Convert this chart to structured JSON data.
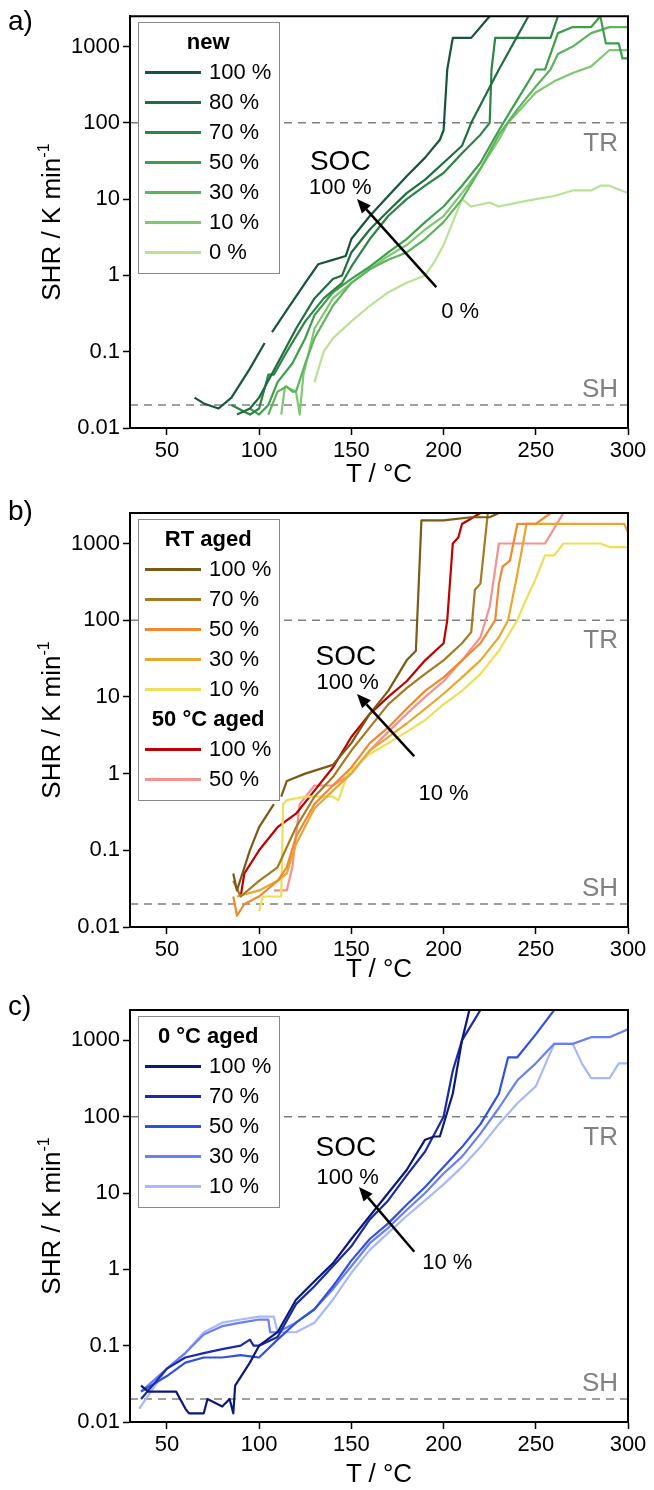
{
  "chart_data": [
    {
      "type": "line",
      "title": "a)",
      "xlabel": "T / °C",
      "ylabel": "SHR / K min$^{-1}$",
      "legend_title": "new",
      "legend": "top left",
      "log": "y",
      "xlim": [
        30,
        300
      ],
      "ylim": [
        0.01,
        2500
      ],
      "xticks": [
        50,
        100,
        150,
        200,
        250,
        300
      ],
      "yticks": [
        0.01,
        0.1,
        1,
        10,
        100,
        1000
      ],
      "ref_lines": [
        {
          "axis": "y",
          "value": 100,
          "label": "TR",
          "color": "#808080",
          "line_style": "dashed"
        },
        {
          "axis": "y",
          "value": 0.02,
          "label": "SH",
          "color": "#808080",
          "line_style": "dashed"
        }
      ],
      "annotations": [
        "SOC",
        "100 %",
        "0 %"
      ],
      "series": [
        {
          "name": "100 %",
          "color": "#17553a",
          "x": [
            65,
            70,
            78,
            85,
            95,
            103,
            104,
            107,
            115,
            125,
            132,
            140,
            147,
            150,
            160,
            170,
            180,
            190,
            198,
            200,
            202,
            205,
            215,
            225
          ],
          "values": [
            0.025,
            0.021,
            0.018,
            0.025,
            0.06,
            0.13,
            null,
            0.18,
            0.35,
            0.8,
            1.4,
            1.6,
            1.8,
            3,
            6,
            11,
            20,
            35,
            60,
            80,
            500,
            1300,
            1300,
            2500
          ]
        },
        {
          "name": "80 %",
          "color": "#1f6e3f",
          "x": [
            88,
            95,
            100,
            110,
            120,
            130,
            140,
            145,
            150,
            160,
            170,
            180,
            190,
            200,
            210,
            215,
            230,
            246
          ],
          "values": [
            0.015,
            0.018,
            0.025,
            0.07,
            0.2,
            0.5,
            0.9,
            1,
            2,
            4,
            7,
            12,
            18,
            30,
            50,
            100,
            500,
            2500
          ]
        },
        {
          "name": "70 %",
          "color": "#2c8544",
          "x": [
            85,
            95,
            100,
            105,
            108,
            115,
            125,
            135,
            145,
            150,
            160,
            170,
            180,
            190,
            200,
            210,
            220,
            225,
            226,
            228,
            258,
            262
          ],
          "values": [
            0.02,
            0.015,
            0.018,
            0.05,
            0.05,
            0.1,
            0.25,
            0.5,
            0.8,
            1.3,
            3,
            6,
            10,
            15,
            22,
            40,
            70,
            100,
            500,
            1300,
            1300,
            2500
          ]
        },
        {
          "name": "50 %",
          "color": "#3e9e4c",
          "x": [
            95,
            100,
            105,
            110,
            118,
            125,
            130,
            140,
            150,
            160,
            170,
            180,
            190,
            200,
            210,
            220,
            230,
            240,
            250,
            255,
            262,
            270,
            280,
            285,
            288,
            295,
            297,
            300
          ],
          "values": [
            0.018,
            0.015,
            0.02,
            0.04,
            0.07,
            0.15,
            0.3,
            0.6,
            0.9,
            1.3,
            2,
            3,
            5,
            8,
            15,
            30,
            80,
            200,
            500,
            500,
            1500,
            1800,
            1800,
            2500,
            1100,
            1100,
            700,
            700
          ]
        },
        {
          "name": "30 %",
          "color": "#5cb55a",
          "x": [
            105,
            110,
            115,
            118,
            120,
            125,
            130,
            140,
            150,
            160,
            170,
            180,
            190,
            200,
            210,
            220,
            230,
            240,
            250,
            258,
            262,
            270,
            280,
            290,
            300
          ],
          "values": [
            0.015,
            0.03,
            0.035,
            0.03,
            0.03,
            0.07,
            0.15,
            0.4,
            0.8,
            1.2,
            1.6,
            2,
            3,
            5,
            10,
            25,
            70,
            150,
            300,
            500,
            800,
            1000,
            1500,
            1800,
            1800
          ]
        },
        {
          "name": "10 %",
          "color": "#80c870",
          "x": [
            112,
            114,
            120,
            122,
            124,
            130,
            140,
            150,
            160,
            170,
            180,
            190,
            200,
            210,
            220,
            230,
            235,
            250,
            260,
            270,
            280,
            290,
            300
          ],
          "values": [
            0.015,
            0.035,
            0.03,
            0.015,
            0.05,
            0.2,
            0.5,
            0.8,
            1.2,
            1.8,
            2.5,
            4,
            6,
            12,
            25,
            60,
            100,
            250,
            350,
            450,
            550,
            900,
            900
          ]
        },
        {
          "name": "0 %",
          "color": "#b8e296",
          "x": [
            130,
            135,
            140,
            150,
            160,
            170,
            180,
            190,
            195,
            200,
            205,
            210,
            215,
            225,
            230,
            240,
            250,
            260,
            270,
            280,
            285,
            290,
            300
          ],
          "values": [
            0.04,
            0.1,
            0.15,
            0.25,
            0.4,
            0.6,
            0.8,
            1,
            1.5,
            2.5,
            5,
            10,
            8,
            9,
            8,
            9,
            10,
            11,
            13,
            13,
            15,
            15,
            12
          ]
        }
      ]
    },
    {
      "type": "line",
      "title": "b)",
      "xlabel": "T / °C",
      "ylabel": "SHR / K min$^{-1}$",
      "legend_title": "RT aged",
      "legend": "top left",
      "log": "y",
      "xlim": [
        30,
        300
      ],
      "ylim": [
        0.01,
        2500
      ],
      "xticks": [
        50,
        100,
        150,
        200,
        250,
        300
      ],
      "yticks": [
        0.01,
        0.1,
        1,
        10,
        100,
        1000
      ],
      "ref_lines": [
        {
          "axis": "y",
          "value": 100,
          "label": "TR",
          "color": "#808080",
          "line_style": "dashed"
        },
        {
          "axis": "y",
          "value": 0.02,
          "label": "SH",
          "color": "#808080",
          "line_style": "dashed"
        }
      ],
      "annotations": [
        "SOC",
        "100 %",
        "10 %",
        "50 °C aged"
      ],
      "series": [
        {
          "name": "100 %",
          "color": "#7a5a14",
          "x": [
            86,
            88,
            95,
            100,
            108,
            110,
            112,
            115,
            125,
            140,
            150,
            160,
            170,
            180,
            185,
            188,
            200,
            215,
            225,
            230
          ],
          "values": [
            0.05,
            0.03,
            0.1,
            0.2,
            0.4,
            null,
            0.5,
            0.8,
            1,
            1.3,
            2.5,
            6,
            12,
            30,
            40,
            2000,
            2000,
            2200,
            2200,
            2500
          ]
        },
        {
          "name": "70 %",
          "color": "#a47a22",
          "x": [
            86,
            90,
            100,
            110,
            120,
            130,
            140,
            150,
            160,
            170,
            180,
            190,
            200,
            210,
            215,
            217,
            220,
            224
          ],
          "values": [
            0.04,
            0.025,
            0.04,
            0.06,
            0.2,
            0.5,
            0.9,
            2,
            4,
            8,
            13,
            20,
            30,
            50,
            70,
            250,
            300,
            2500
          ]
        },
        {
          "name": "50 %",
          "color": "#f08a30",
          "x": [
            86,
            88,
            92,
            100,
            110,
            115,
            120,
            130,
            140,
            150,
            160,
            170,
            180,
            190,
            200,
            210,
            220,
            228,
            230,
            232,
            236,
            240,
            250,
            258
          ],
          "values": [
            0.025,
            0.014,
            0.02,
            0.025,
            0.04,
            0.06,
            0.15,
            0.4,
            0.7,
            1.2,
            2.5,
            4,
            7,
            12,
            18,
            30,
            50,
            100,
            300,
            500,
            600,
            1800,
            1800,
            2500
          ]
        },
        {
          "name": "30 %",
          "color": "#e8a830",
          "x": [
            88,
            100,
            110,
            115,
            120,
            130,
            140,
            150,
            160,
            170,
            180,
            190,
            200,
            210,
            220,
            230,
            235,
            240,
            245,
            260,
            275,
            298,
            300
          ],
          "values": [
            0.025,
            0.03,
            0.04,
            0.05,
            0.12,
            0.35,
            0.6,
            1,
            2,
            3,
            4.5,
            7,
            11,
            18,
            30,
            60,
            100,
            400,
            1800,
            1800,
            1800,
            1800,
            1400
          ]
        },
        {
          "name": "10 %",
          "color": "#eedf5a",
          "x": [
            100,
            102,
            112,
            113,
            115,
            125,
            140,
            143,
            148,
            160,
            170,
            180,
            190,
            200,
            210,
            220,
            230,
            240,
            243,
            250,
            255,
            260,
            265,
            285,
            290,
            300
          ],
          "values": [
            0.016,
            0.025,
            0.025,
            0.4,
            0.45,
            0.5,
            0.5,
            0.45,
            1,
            1.8,
            2.5,
            3.5,
            5,
            8,
            12,
            20,
            40,
            100,
            150,
            350,
            700,
            700,
            1000,
            1000,
            900,
            900
          ]
        },
        {
          "name": "100 %",
          "color": "#c00000",
          "x": [
            90,
            92,
            100,
            110,
            120,
            130,
            140,
            150,
            160,
            170,
            180,
            190,
            200,
            202,
            205,
            208,
            210,
            220
          ],
          "values": [
            0.025,
            0.05,
            0.1,
            0.2,
            0.3,
            0.6,
            1.2,
            3,
            6,
            10,
            16,
            30,
            50,
            100,
            1000,
            1200,
            1800,
            2500
          ]
        },
        {
          "name": "50 %",
          "color": "#f89090",
          "x": [
            108,
            115,
            118,
            122,
            130,
            140,
            150,
            160,
            170,
            180,
            190,
            200,
            210,
            220,
            225,
            230,
            240,
            255,
            265
          ],
          "values": [
            0.03,
            0.03,
            0.06,
            0.4,
            0.7,
            0.7,
            1,
            2,
            3.5,
            6,
            10,
            16,
            30,
            60,
            150,
            1000,
            1000,
            1000,
            2500
          ]
        }
      ]
    },
    {
      "type": "line",
      "title": "c)",
      "xlabel": "T / °C",
      "ylabel": "SHR / K min$^{-1}$",
      "legend_title": "0 °C aged",
      "legend": "top left",
      "log": "y",
      "xlim": [
        30,
        300
      ],
      "ylim": [
        0.01,
        2500
      ],
      "xticks": [
        50,
        100,
        150,
        200,
        250,
        300
      ],
      "yticks": [
        0.01,
        0.1,
        1,
        10,
        100,
        1000
      ],
      "ref_lines": [
        {
          "axis": "y",
          "value": 100,
          "label": "TR",
          "color": "#808080",
          "line_style": "dashed"
        },
        {
          "axis": "y",
          "value": 0.02,
          "label": "SH",
          "color": "#808080",
          "line_style": "dashed"
        }
      ],
      "annotations": [
        "SOC",
        "100 %",
        "10 %"
      ],
      "series": [
        {
          "name": "100 %",
          "color": "#0b1a7a",
          "x": [
            36,
            40,
            50,
            55,
            60,
            62,
            70,
            72,
            80,
            84,
            86,
            87,
            95,
            100,
            110,
            120,
            130,
            140,
            150,
            160,
            170,
            180,
            190,
            195,
            198,
            205,
            210,
            214
          ],
          "values": [
            0.03,
            0.025,
            0.025,
            0.025,
            0.015,
            0.013,
            0.013,
            0.02,
            0.016,
            0.02,
            0.013,
            0.03,
            0.06,
            0.1,
            0.15,
            0.4,
            0.7,
            1.2,
            2.5,
            5,
            10,
            20,
            50,
            55,
            55,
            200,
            1000,
            2500
          ]
        },
        {
          "name": "70 %",
          "color": "#1a2aa8",
          "x": [
            36,
            50,
            60,
            70,
            80,
            90,
            95,
            97,
            100,
            110,
            120,
            130,
            140,
            150,
            160,
            170,
            180,
            190,
            200,
            205,
            210,
            220
          ],
          "values": [
            0.02,
            0.05,
            0.07,
            0.08,
            0.09,
            0.1,
            0.12,
            0.1,
            0.1,
            0.13,
            0.35,
            0.6,
            1.1,
            2,
            4.5,
            8,
            17,
            35,
            100,
            400,
            1000,
            2500
          ]
        },
        {
          "name": "50 %",
          "color": "#3050e0",
          "x": [
            36,
            50,
            60,
            70,
            80,
            90,
            100,
            110,
            120,
            130,
            140,
            150,
            160,
            170,
            180,
            190,
            200,
            210,
            220,
            230,
            235,
            240,
            250,
            260
          ],
          "values": [
            0.025,
            0.04,
            0.06,
            0.07,
            0.07,
            0.075,
            0.07,
            0.12,
            0.2,
            0.3,
            0.6,
            1.3,
            2.5,
            4,
            7,
            12,
            22,
            40,
            80,
            200,
            600,
            600,
            1200,
            2500
          ]
        },
        {
          "name": "30 %",
          "color": "#6a80f0",
          "x": [
            36,
            50,
            60,
            70,
            80,
            90,
            100,
            105,
            106,
            110,
            120,
            130,
            140,
            150,
            160,
            170,
            180,
            190,
            200,
            210,
            220,
            230,
            240,
            250,
            260,
            270,
            280,
            290,
            300
          ],
          "values": [
            0.025,
            0.05,
            0.08,
            0.14,
            0.18,
            0.2,
            0.22,
            0.22,
            0.15,
            0.15,
            0.2,
            0.3,
            0.55,
            1.1,
            2.2,
            3.5,
            6,
            10,
            18,
            30,
            60,
            130,
            300,
            500,
            900,
            900,
            1100,
            1100,
            1400
          ]
        },
        {
          "name": "10 %",
          "color": "#a8b8f8",
          "x": [
            35,
            50,
            60,
            70,
            80,
            90,
            100,
            108,
            110,
            120,
            130,
            140,
            150,
            160,
            170,
            180,
            190,
            200,
            210,
            220,
            230,
            240,
            250,
            260,
            270,
            275,
            280,
            290,
            295,
            300
          ],
          "values": [
            0.015,
            0.05,
            0.08,
            0.15,
            0.2,
            0.22,
            0.24,
            0.24,
            0.15,
            0.15,
            0.2,
            0.4,
            0.9,
            1.8,
            3,
            5,
            8,
            13,
            22,
            40,
            80,
            150,
            250,
            900,
            900,
            500,
            320,
            320,
            500,
            500
          ]
        }
      ]
    }
  ]
}
